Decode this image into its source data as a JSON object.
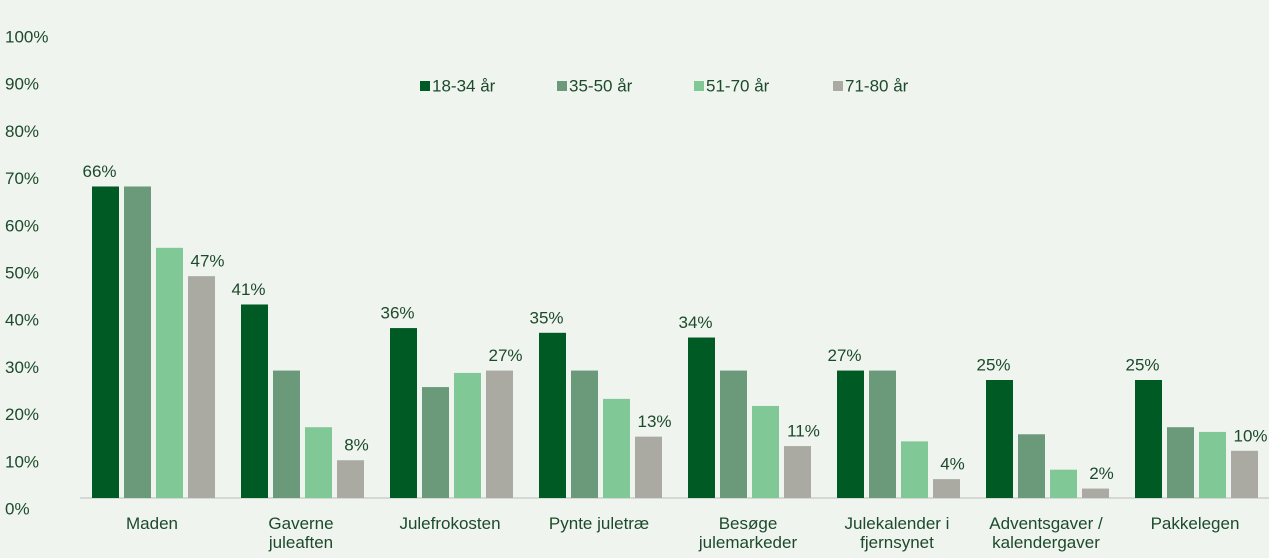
{
  "chart_data": {
    "type": "bar",
    "categories": [
      "Maden",
      "Gaverne juleaften",
      "Julefrokosten",
      "Pynte juletræ",
      "Besøge julemarkeder",
      "Julekalender i fjernsynet",
      "Adventsgaver / kalendergaver",
      "Pakkelegen"
    ],
    "series": [
      {
        "name": "18-34 år",
        "color": "#005a24",
        "values": [
          66,
          41,
          36,
          35,
          34,
          27,
          25,
          25
        ],
        "value_labels": [
          "66%",
          "41%",
          "36%",
          "35%",
          "34%",
          "27%",
          "25%",
          "25%"
        ]
      },
      {
        "name": "35-50 år",
        "color": "#6a9a7a",
        "values": [
          66,
          27,
          23.5,
          27,
          27,
          27,
          13.5,
          15
        ]
      },
      {
        "name": "51-70 år",
        "color": "#80c896",
        "values": [
          53,
          15,
          26.5,
          21,
          19.5,
          12,
          6,
          14
        ]
      },
      {
        "name": "71-80 år",
        "color": "#aaaaa2",
        "values": [
          47,
          8,
          27,
          13,
          11,
          4,
          2,
          10
        ],
        "value_labels": [
          "47%",
          "8%",
          "27%",
          "13%",
          "11%",
          "4%",
          "2%",
          "10%"
        ]
      }
    ],
    "ylim": [
      0,
      100
    ],
    "yticks": [
      {
        "value": 0,
        "label": "0%"
      },
      {
        "value": 10,
        "label": "10%"
      },
      {
        "value": 20,
        "label": "20%"
      },
      {
        "value": 30,
        "label": "30%"
      },
      {
        "value": 40,
        "label": "40%"
      },
      {
        "value": 50,
        "label": "50%"
      },
      {
        "value": 60,
        "label": "60%"
      },
      {
        "value": 70,
        "label": "70%"
      },
      {
        "value": 80,
        "label": "80%"
      },
      {
        "value": 90,
        "label": "90%"
      },
      {
        "value": 100,
        "label": "100%"
      }
    ],
    "grid": false,
    "legend": "top"
  }
}
